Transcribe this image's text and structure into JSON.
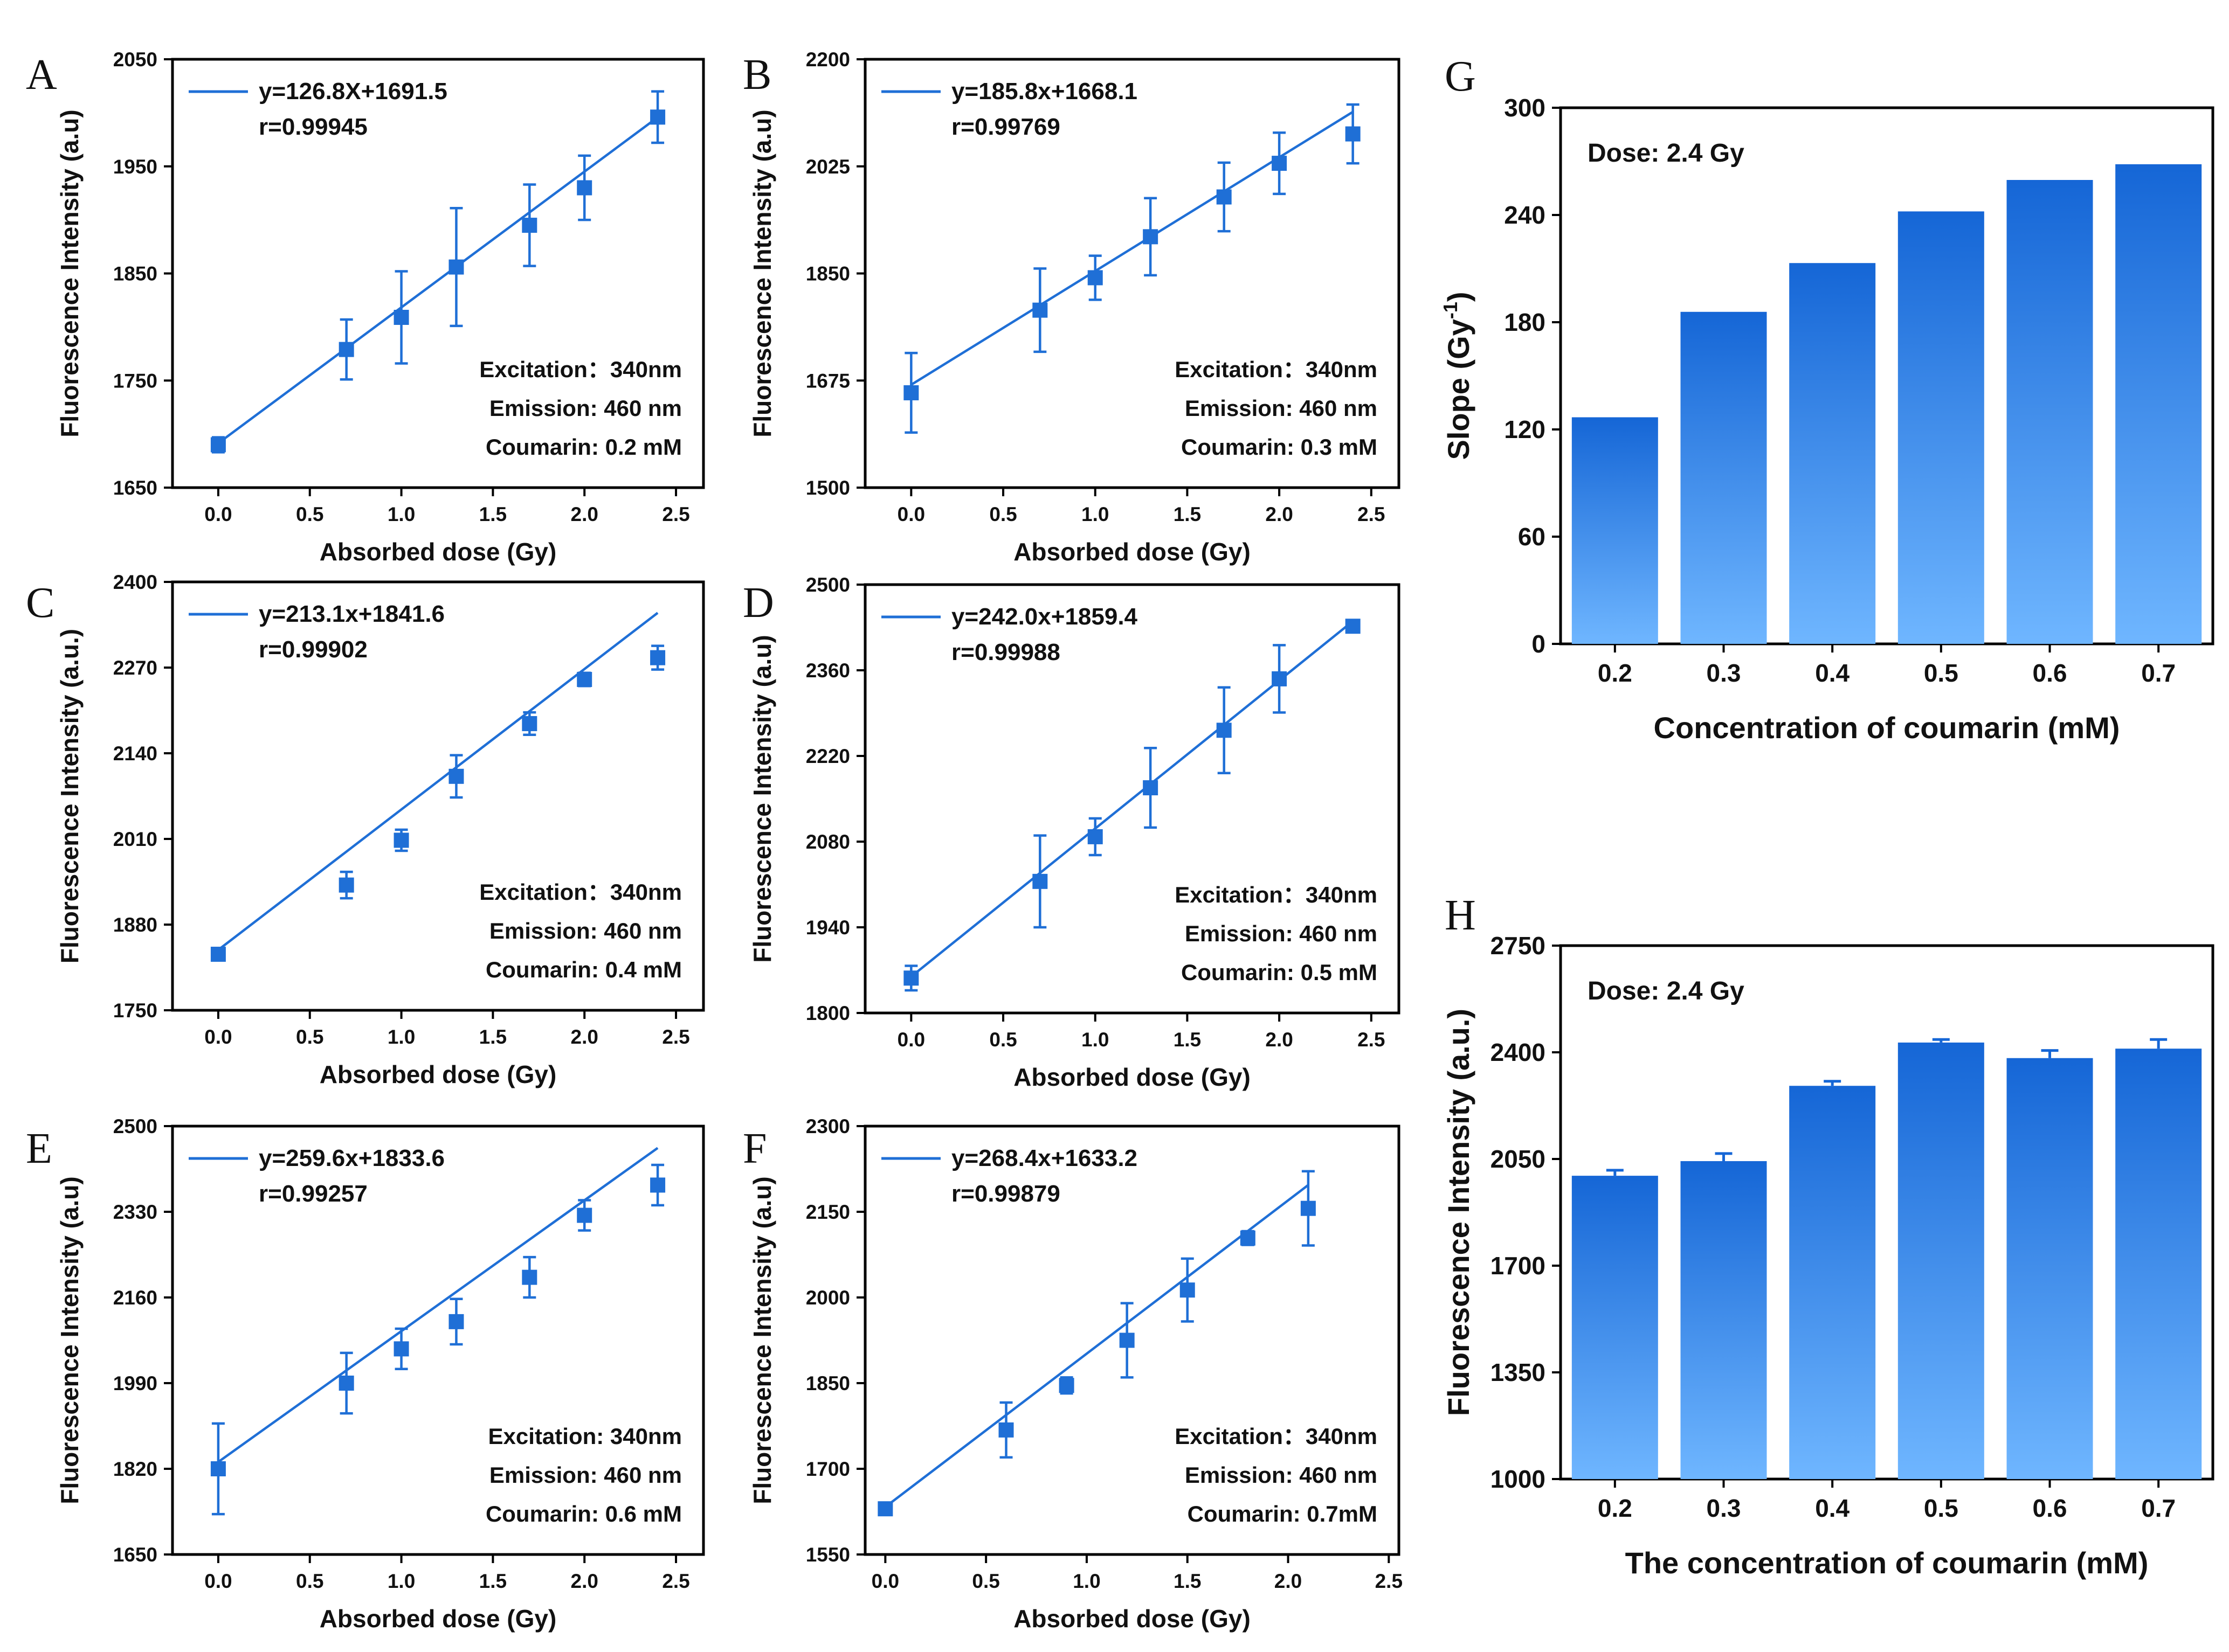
{
  "colors": {
    "series": "#1f6fd6",
    "bar_top": "#1566d6",
    "bar_bottom": "#6fb6ff",
    "axis": "#000000"
  },
  "chart_data": [
    {
      "id": "A",
      "panel_label": "A",
      "type": "scatter",
      "xlabel": "Absorbed dose (Gy)",
      "ylabel": "Fluorescence Intensity (a.u)",
      "xlim": [
        -0.25,
        2.65
      ],
      "ylim": [
        1650,
        2050
      ],
      "xticks": [
        0,
        0.5,
        1,
        1.5,
        2,
        2.5
      ],
      "xtick_labels": [
        "0.0",
        "0.5",
        "1.0",
        "1.5",
        "2.0",
        "2.5"
      ],
      "yticks": [
        1650,
        1750,
        1850,
        1950,
        2050
      ],
      "ytick_labels": [
        "1650",
        "1750",
        "1850",
        "1950",
        "2050"
      ],
      "x": [
        0,
        0.7,
        1.0,
        1.3,
        1.7,
        2.0,
        2.4
      ],
      "y": [
        1690,
        1779,
        1809,
        1856,
        1895,
        1930,
        1996
      ],
      "err": [
        7,
        28,
        43,
        55,
        38,
        30,
        24
      ],
      "fit": {
        "slope": 126.8,
        "intercept": 1691.5,
        "x_range": [
          0,
          2.4
        ]
      },
      "legend": {
        "equation": "y=126.8X+1691.5",
        "r": "r=0.99945"
      },
      "annotations": [
        "Excitation：340nm",
        "Emission: 460 nm",
        "Coumarin: 0.2 mM"
      ]
    },
    {
      "id": "B",
      "panel_label": "B",
      "type": "scatter",
      "xlabel": "Absorbed dose (Gy)",
      "ylabel": "Fluorescence Intensity (a.u)",
      "xlim": [
        -0.25,
        2.65
      ],
      "ylim": [
        1500,
        2200
      ],
      "xticks": [
        0,
        0.5,
        1,
        1.5,
        2,
        2.5
      ],
      "xtick_labels": [
        "0.0",
        "0.5",
        "1.0",
        "1.5",
        "2.0",
        "2.5"
      ],
      "yticks": [
        1500,
        1675,
        1850,
        2025,
        2200
      ],
      "ytick_labels": [
        "1500",
        "1675",
        "1850",
        "2025",
        "2200"
      ],
      "x": [
        0,
        0.7,
        1.0,
        1.3,
        1.7,
        2.0,
        2.4
      ],
      "y": [
        1655,
        1790,
        1843,
        1910,
        1975,
        2030,
        2078
      ],
      "err": [
        65,
        68,
        36,
        63,
        56,
        50,
        48
      ],
      "fit": {
        "slope": 185.8,
        "intercept": 1668.1,
        "x_range": [
          0,
          2.4
        ]
      },
      "legend": {
        "equation": "y=185.8x+1668.1",
        "r": "r=0.99769"
      },
      "annotations": [
        "Excitation：340nm",
        "Emission: 460 nm",
        "Coumarin: 0.3 mM"
      ]
    },
    {
      "id": "C",
      "panel_label": "C",
      "type": "scatter",
      "xlabel": "Absorbed dose (Gy)",
      "ylabel": "Fluorescence Intensity (a.u.)",
      "xlim": [
        -0.25,
        2.65
      ],
      "ylim": [
        1750,
        2400
      ],
      "xticks": [
        0,
        0.5,
        1,
        1.5,
        2,
        2.5
      ],
      "xtick_labels": [
        "0.0",
        "0.5",
        "1.0",
        "1.5",
        "2.0",
        "2.5"
      ],
      "yticks": [
        1750,
        1880,
        2010,
        2140,
        2270,
        2400
      ],
      "ytick_labels": [
        "1750",
        "1880",
        "2010",
        "2140",
        "2270",
        "2400"
      ],
      "x": [
        0,
        0.7,
        1.0,
        1.3,
        1.7,
        2.0,
        2.4
      ],
      "y": [
        1835,
        1940,
        2008,
        2105,
        2185,
        2252,
        2285
      ],
      "err": [
        8,
        20,
        16,
        32,
        17,
        10,
        18
      ],
      "fit": {
        "slope": 213.1,
        "intercept": 1841.6,
        "x_range": [
          0,
          2.4
        ]
      },
      "legend": {
        "equation": "y=213.1x+1841.6",
        "r": "r=0.99902"
      },
      "annotations": [
        "Excitation：340nm",
        "Emission: 460 nm",
        "Coumarin: 0.4 mM"
      ]
    },
    {
      "id": "D",
      "panel_label": "D",
      "type": "scatter",
      "xlabel": "Absorbed dose (Gy)",
      "ylabel": "Fluorescence Intensity (a.u)",
      "xlim": [
        -0.25,
        2.65
      ],
      "ylim": [
        1800,
        2500
      ],
      "xticks": [
        0,
        0.5,
        1,
        1.5,
        2,
        2.5
      ],
      "xtick_labels": [
        "0.0",
        "0.5",
        "1.0",
        "1.5",
        "2.0",
        "2.5"
      ],
      "yticks": [
        1800,
        1940,
        2080,
        2220,
        2360,
        2500
      ],
      "ytick_labels": [
        "1800",
        "1940",
        "2080",
        "2220",
        "2360",
        "2500"
      ],
      "x": [
        0,
        0.7,
        1.0,
        1.3,
        1.7,
        2.0,
        2.4
      ],
      "y": [
        1857,
        2015,
        2088,
        2168,
        2262,
        2346,
        2432
      ],
      "err": [
        20,
        75,
        30,
        65,
        70,
        55,
        10
      ],
      "fit": {
        "slope": 242.0,
        "intercept": 1859.4,
        "x_range": [
          0,
          2.4
        ]
      },
      "legend": {
        "equation": "y=242.0x+1859.4",
        "r": "r=0.99988"
      },
      "annotations": [
        "Excitation：340nm",
        "Emission: 460 nm",
        "Coumarin: 0.5 mM"
      ]
    },
    {
      "id": "E",
      "panel_label": "E",
      "type": "scatter",
      "xlabel": "Absorbed dose (Gy)",
      "ylabel": "Fluorescence Intensity (a.u)",
      "xlim": [
        -0.25,
        2.65
      ],
      "ylim": [
        1650,
        2500
      ],
      "xticks": [
        0,
        0.5,
        1,
        1.5,
        2,
        2.5
      ],
      "xtick_labels": [
        "0.0",
        "0.5",
        "1.0",
        "1.5",
        "2.0",
        "2.5"
      ],
      "yticks": [
        1650,
        1820,
        1990,
        2160,
        2330,
        2500
      ],
      "ytick_labels": [
        "1650",
        "1820",
        "1990",
        "2160",
        "2330",
        "2500"
      ],
      "x": [
        0,
        0.7,
        1.0,
        1.3,
        1.7,
        2.0,
        2.4
      ],
      "y": [
        1820,
        1990,
        2058,
        2112,
        2200,
        2323,
        2383
      ],
      "err": [
        90,
        60,
        40,
        45,
        40,
        30,
        40
      ],
      "fit": {
        "slope": 259.6,
        "intercept": 1833.6,
        "x_range": [
          0,
          2.4
        ]
      },
      "legend": {
        "equation": "y=259.6x+1833.6",
        "r": "r=0.99257"
      },
      "annotations": [
        "Excitation: 340nm",
        "Emission: 460 nm",
        "Coumarin: 0.6 mM"
      ]
    },
    {
      "id": "F",
      "panel_label": "F",
      "type": "scatter",
      "xlabel": "Absorbed dose (Gy)",
      "ylabel": "Fluorescence Intensity (a.u)",
      "xlim": [
        -0.1,
        2.55
      ],
      "ylim": [
        1550,
        2300
      ],
      "xticks": [
        0,
        0.5,
        1,
        1.5,
        2,
        2.5
      ],
      "xtick_labels": [
        "0.0",
        "0.5",
        "1.0",
        "1.5",
        "2.0",
        "2.5"
      ],
      "yticks": [
        1550,
        1700,
        1850,
        2000,
        2150,
        2300
      ],
      "ytick_labels": [
        "1550",
        "1700",
        "1850",
        "2000",
        "2150",
        "2300"
      ],
      "x": [
        0,
        0.6,
        0.9,
        1.2,
        1.5,
        1.8,
        2.1
      ],
      "y": [
        1630,
        1768,
        1846,
        1925,
        2013,
        2104,
        2156
      ],
      "err": [
        8,
        48,
        14,
        65,
        55,
        12,
        65
      ],
      "fit": {
        "slope": 268.4,
        "intercept": 1633.2,
        "x_range": [
          0,
          2.1
        ]
      },
      "legend": {
        "equation": "y=268.4x+1633.2",
        "r": "r=0.99879"
      },
      "annotations": [
        "Excitation：340nm",
        "Emission: 460 nm",
        "Coumarin: 0.7mM"
      ]
    },
    {
      "id": "G",
      "panel_label": "G",
      "type": "bar",
      "xlabel": "Concentration of coumarin (mM)",
      "ylabel": "Slope (Gy-1)",
      "ylabel_main": "Slope (Gy",
      "ylabel_sup": "-1",
      "ylabel_end": ")",
      "ylim": [
        0,
        300
      ],
      "yticks": [
        0,
        60,
        120,
        180,
        240,
        300
      ],
      "ytick_labels": [
        "0",
        "60",
        "120",
        "180",
        "240",
        "300"
      ],
      "categories": [
        "0.2",
        "0.3",
        "0.4",
        "0.5",
        "0.6",
        "0.7"
      ],
      "values": [
        126.8,
        185.8,
        213.1,
        242.0,
        259.6,
        268.4
      ],
      "annotation": "Dose: 2.4 Gy"
    },
    {
      "id": "H",
      "panel_label": "H",
      "type": "bar",
      "xlabel": "The concentration of coumarin (mM)",
      "ylabel": "Fluorescence Intensity (a.u.)",
      "ylim": [
        1000,
        2750
      ],
      "yticks": [
        1000,
        1350,
        1700,
        2050,
        2400,
        2750
      ],
      "ytick_labels": [
        "1000",
        "1350",
        "1700",
        "2050",
        "2400",
        "2750"
      ],
      "categories": [
        "0.2",
        "0.3",
        "0.4",
        "0.5",
        "0.6",
        "0.7"
      ],
      "values": [
        1995,
        2043,
        2290,
        2432,
        2381,
        2412
      ],
      "err": [
        18,
        25,
        15,
        10,
        25,
        30
      ],
      "annotation": "Dose: 2.4 Gy"
    }
  ]
}
